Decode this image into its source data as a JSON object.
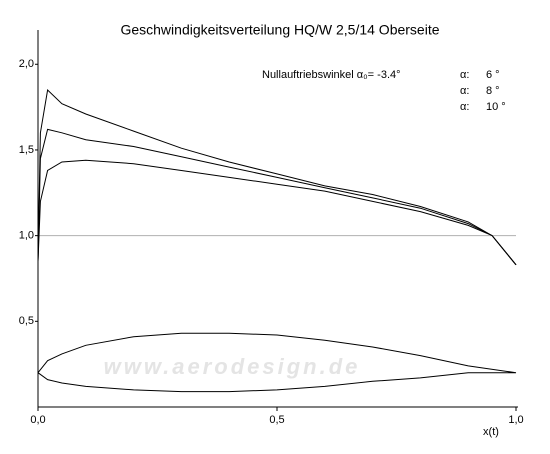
{
  "chart_data": {
    "type": "line",
    "title": "Geschwindigkeitsverteilung HQ/W 2,5/14 Oberseite",
    "annotation": "Nullauftriebswinkel α₀= -3.4°",
    "legend_prefix": "α:",
    "watermark": "www.aerodesign.de",
    "xlabel": "x(t)",
    "xlim": [
      0,
      1
    ],
    "ylim": [
      0,
      2.2
    ],
    "xticks": [
      {
        "value": 0,
        "label": "0,0"
      },
      {
        "value": 0.5,
        "label": "0,5"
      },
      {
        "value": 1,
        "label": "1,0"
      }
    ],
    "yticks": [
      {
        "value": 0.5,
        "label": "0,5"
      },
      {
        "value": 1,
        "label": "1,0"
      },
      {
        "value": 1.5,
        "label": "1,5"
      },
      {
        "value": 2,
        "label": "2,0"
      }
    ],
    "hline": 1,
    "hline_color": "#b0b0b0",
    "grid": false,
    "legend": "upper right",
    "x": [
      0,
      0.005,
      0.02,
      0.05,
      0.1,
      0.2,
      0.3,
      0.4,
      0.5,
      0.6,
      0.7,
      0.8,
      0.9,
      0.95,
      1
    ],
    "series": [
      {
        "name": "6 °",
        "color": "#000000",
        "values": [
          0.85,
          1.2,
          1.38,
          1.43,
          1.44,
          1.42,
          1.38,
          1.34,
          1.3,
          1.26,
          1.2,
          1.14,
          1.06,
          1.0,
          0.83
        ]
      },
      {
        "name": "8 °",
        "color": "#000000",
        "values": [
          0.85,
          1.45,
          1.62,
          1.6,
          1.56,
          1.52,
          1.46,
          1.4,
          1.34,
          1.28,
          1.22,
          1.16,
          1.07,
          1.0,
          0.83
        ]
      },
      {
        "name": "10 °",
        "color": "#000000",
        "values": [
          0.85,
          1.6,
          1.85,
          1.77,
          1.71,
          1.61,
          1.51,
          1.43,
          1.36,
          1.29,
          1.24,
          1.17,
          1.08,
          1.0,
          0.83
        ]
      }
    ],
    "shape": {
      "color": "#000000",
      "x": [
        0,
        0.02,
        0.05,
        0.1,
        0.2,
        0.3,
        0.4,
        0.5,
        0.6,
        0.7,
        0.8,
        0.9,
        1,
        0.9,
        0.8,
        0.7,
        0.6,
        0.5,
        0.4,
        0.3,
        0.2,
        0.1,
        0.05,
        0.02,
        0
      ],
      "y": [
        0.2,
        0.27,
        0.31,
        0.36,
        0.41,
        0.43,
        0.43,
        0.42,
        0.39,
        0.35,
        0.3,
        0.24,
        0.2,
        0.2,
        0.17,
        0.15,
        0.12,
        0.1,
        0.09,
        0.09,
        0.1,
        0.12,
        0.14,
        0.16,
        0.2
      ]
    }
  }
}
